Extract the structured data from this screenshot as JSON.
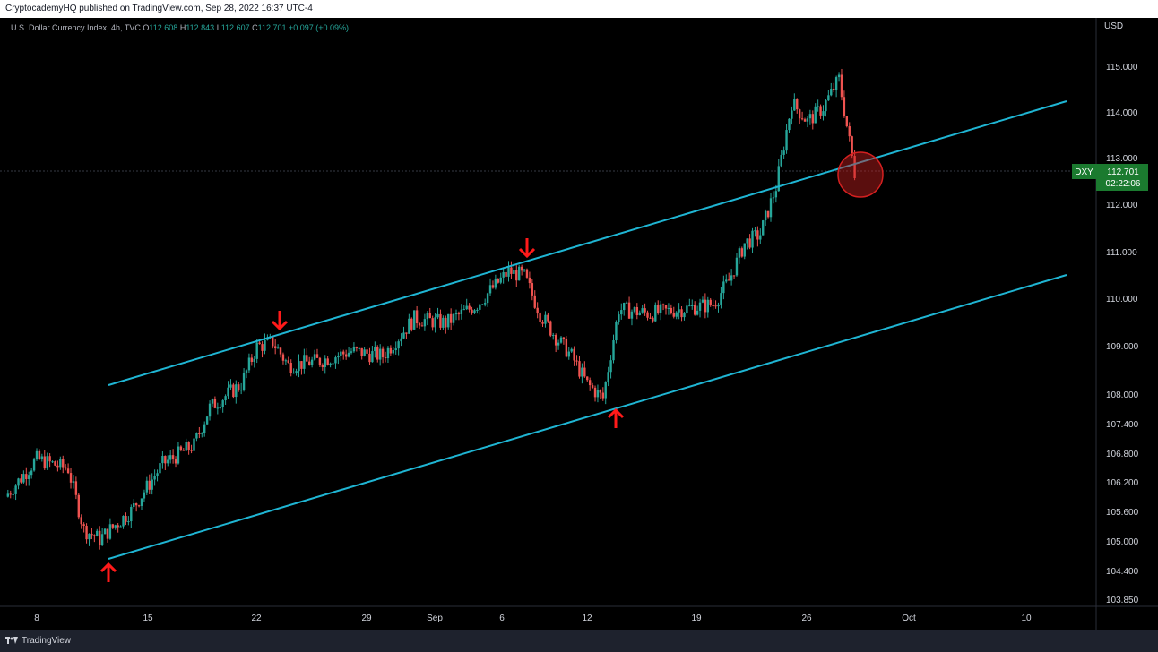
{
  "header": {
    "published": "CryptocademyHQ published on TradingView.com, Sep 28, 2022 16:37 UTC-4"
  },
  "legend": {
    "title": "U.S. Dollar Currency Index, 4h, TVC",
    "o_label": "O",
    "o": "112.608",
    "h_label": "H",
    "h": "112.843",
    "l_label": "L",
    "l": "112.607",
    "c_label": "C",
    "c": "112.701",
    "change": "+0.097 (+0.09%)"
  },
  "price_axis": {
    "currency": "USD",
    "ticks": [
      "115.000",
      "114.000",
      "113.000",
      "112.000",
      "111.000",
      "110.000",
      "109.000",
      "108.000",
      "107.400",
      "106.800",
      "106.200",
      "105.600",
      "105.000",
      "104.400",
      "103.850"
    ]
  },
  "price_badge": {
    "symbol": "DXY",
    "price": "112.701",
    "countdown": "02:22:06"
  },
  "time_axis": {
    "ticks": [
      "8",
      "15",
      "22",
      "29",
      "Sep",
      "6",
      "12",
      "19",
      "26",
      "Oct",
      "10"
    ]
  },
  "footer": {
    "brand": "TradingView"
  },
  "colors": {
    "up": "#26a69a",
    "down": "#ef5350",
    "channel": "#1fb5d3",
    "arrow": "#ff1a1a",
    "badge": "#1b7a2f"
  },
  "chart_data": {
    "type": "candlestick",
    "symbol": "DXY",
    "timeframe": "4h",
    "annotations": [
      "channel-upper-line",
      "channel-lower-line",
      "arrow-down x2",
      "arrow-up x2",
      "circle-at-breakdown"
    ],
    "trendlines": [
      {
        "name": "upper",
        "from": {
          "date": "2022-08-12",
          "price": 108.2
        },
        "to": {
          "date": "2022-10-06",
          "price": 114.2
        }
      },
      {
        "name": "lower",
        "from": {
          "date": "2022-08-12",
          "price": 104.7
        },
        "to": {
          "date": "2022-10-06",
          "price": 110.5
        }
      }
    ],
    "close_path": [
      {
        "date": "2022-08-06",
        "close": 105.8
      },
      {
        "date": "2022-08-08",
        "close": 106.6
      },
      {
        "date": "2022-08-10",
        "close": 106.4
      },
      {
        "date": "2022-08-11",
        "close": 105.1
      },
      {
        "date": "2022-08-12",
        "close": 104.9
      },
      {
        "date": "2022-08-14",
        "close": 105.5
      },
      {
        "date": "2022-08-16",
        "close": 106.5
      },
      {
        "date": "2022-08-18",
        "close": 106.9
      },
      {
        "date": "2022-08-19",
        "close": 107.7
      },
      {
        "date": "2022-08-21",
        "close": 108.2
      },
      {
        "date": "2022-08-22",
        "close": 109.0
      },
      {
        "date": "2022-08-23",
        "close": 109.1
      },
      {
        "date": "2022-08-24",
        "close": 108.6
      },
      {
        "date": "2022-08-26",
        "close": 108.7
      },
      {
        "date": "2022-08-28",
        "close": 108.9
      },
      {
        "date": "2022-08-30",
        "close": 108.8
      },
      {
        "date": "2022-09-01",
        "close": 109.6
      },
      {
        "date": "2022-09-03",
        "close": 109.5
      },
      {
        "date": "2022-09-05",
        "close": 109.9
      },
      {
        "date": "2022-09-07",
        "close": 110.6
      },
      {
        "date": "2022-09-08",
        "close": 110.5
      },
      {
        "date": "2022-09-09",
        "close": 109.7
      },
      {
        "date": "2022-09-10",
        "close": 109.2
      },
      {
        "date": "2022-09-11",
        "close": 108.8
      },
      {
        "date": "2022-09-12",
        "close": 108.2
      },
      {
        "date": "2022-09-13",
        "close": 107.9
      },
      {
        "date": "2022-09-14",
        "close": 109.8
      },
      {
        "date": "2022-09-16",
        "close": 109.7
      },
      {
        "date": "2022-09-18",
        "close": 109.8
      },
      {
        "date": "2022-09-20",
        "close": 109.9
      },
      {
        "date": "2022-09-21",
        "close": 110.4
      },
      {
        "date": "2022-09-22",
        "close": 111.2
      },
      {
        "date": "2022-09-23",
        "close": 111.4
      },
      {
        "date": "2022-09-24",
        "close": 112.4
      },
      {
        "date": "2022-09-25",
        "close": 114.2
      },
      {
        "date": "2022-09-26",
        "close": 113.8
      },
      {
        "date": "2022-09-27",
        "close": 114.1
      },
      {
        "date": "2022-09-28",
        "close": 114.7
      },
      {
        "date": "2022-09-29",
        "close": 112.7
      }
    ]
  }
}
